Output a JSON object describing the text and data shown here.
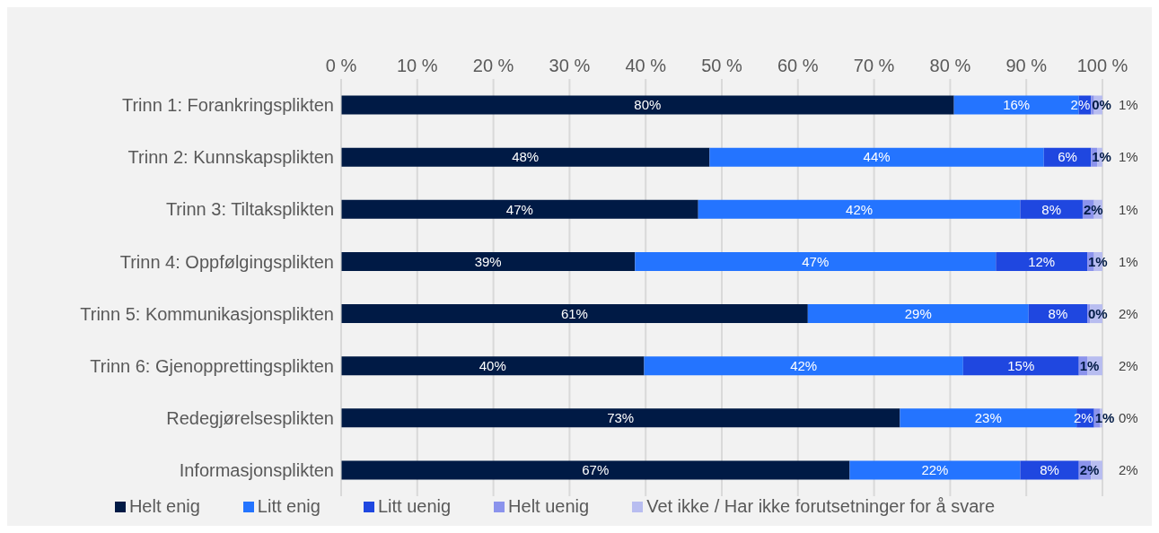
{
  "chart_data": {
    "type": "bar",
    "orientation": "horizontal",
    "stacked": true,
    "grid": "x",
    "legend": "bottom",
    "categories": [
      "Trinn 1: Forankringsplikten",
      "Trinn 2: Kunnskapsplikten",
      "Trinn 3: Tiltaksplikten",
      "Trinn 4: Oppfølgingsplikten",
      "Trinn 5: Kommunikasjonsplikten",
      "Trinn 6: Gjenopprettingsplikten",
      "Redegjørelsesplikten",
      "Informasjonsplikten"
    ],
    "xlim": [
      0,
      100
    ],
    "xticks": [
      {
        "value": 0,
        "label": "0 %"
      },
      {
        "value": 10,
        "label": "10 %"
      },
      {
        "value": 20,
        "label": "20 %"
      },
      {
        "value": 30,
        "label": "30 %"
      },
      {
        "value": 40,
        "label": "40 %"
      },
      {
        "value": 50,
        "label": "50 %"
      },
      {
        "value": 60,
        "label": "60 %"
      },
      {
        "value": 70,
        "label": "70 %"
      },
      {
        "value": 80,
        "label": "80 %"
      },
      {
        "value": 90,
        "label": "90 %"
      },
      {
        "value": 100,
        "label": "100 %"
      }
    ],
    "series": [
      {
        "name": "Helt enig",
        "color": "#001a45",
        "values": [
          80.5,
          48.4,
          46.9,
          38.6,
          61.3,
          39.8,
          73.4,
          66.8
        ],
        "value_labels": [
          "80%",
          "48%",
          "47%",
          "39%",
          "61%",
          "40%",
          "73%",
          "67%"
        ]
      },
      {
        "name": "Litt enig",
        "color": "#2474ff",
        "values": [
          16.4,
          43.9,
          42.3,
          47.4,
          29.0,
          41.9,
          23.2,
          22.4
        ],
        "value_labels": [
          "16%",
          "44%",
          "42%",
          "47%",
          "29%",
          "42%",
          "23%",
          "22%"
        ]
      },
      {
        "name": "Litt uenig",
        "color": "#1f47e0",
        "values": [
          1.6,
          6.2,
          8.2,
          12.0,
          7.7,
          15.2,
          2.3,
          7.7
        ],
        "value_labels": [
          "2%",
          "6%",
          "8%",
          "12%",
          "8%",
          "15%",
          "2%",
          "8%"
        ]
      },
      {
        "name": "Helt uenig",
        "color": "#8b93ec",
        "values": [
          0.4,
          0.8,
          1.5,
          0.9,
          0.4,
          1.1,
          0.8,
          1.6
        ],
        "value_labels": [
          "0%",
          "1%",
          "2%",
          "1%",
          "0%",
          "1%",
          "1%",
          "2%"
        ]
      },
      {
        "name": "Vet ikke / Har ikke forutsetninger for å svare",
        "color": "#b8bdf0",
        "values": [
          1.1,
          0.7,
          1.1,
          1.1,
          1.6,
          2.0,
          0.3,
          1.5
        ],
        "value_labels": [
          "1%",
          "1%",
          "1%",
          "1%",
          "2%",
          "2%",
          "0%",
          "2%"
        ]
      }
    ]
  }
}
